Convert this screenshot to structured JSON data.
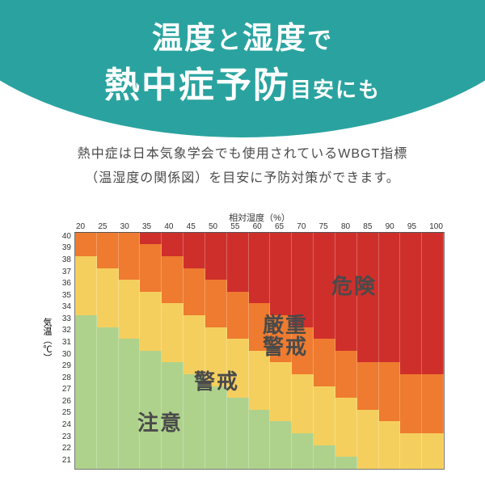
{
  "hero": {
    "circle_color": "#2aa3a0",
    "line1_pre": "温度",
    "line1_mid": "と",
    "line1_post": "湿度",
    "line1_end": "で",
    "line2_main": "熱中症予防",
    "line2_tail": "目安にも"
  },
  "subtitle": {
    "color": "#4a4a4a",
    "line1": "熱中症は日本気象学会でも使用されているWBGT指標",
    "line2": "（温湿度の関係図）を目安に予防対策ができます。"
  },
  "chart": {
    "type": "heatmap",
    "xaxis": {
      "label": "相対湿度（%）",
      "ticks": [
        20,
        25,
        30,
        35,
        40,
        45,
        50,
        55,
        60,
        65,
        70,
        75,
        80,
        85,
        90,
        95,
        100
      ]
    },
    "yaxis": {
      "label": "気温（℃）",
      "ticks": [
        40,
        39,
        38,
        37,
        36,
        35,
        34,
        33,
        32,
        31,
        30,
        29,
        28,
        27,
        26,
        25,
        24,
        23,
        22,
        21
      ]
    },
    "zone_colors": {
      "danger": "#cf2f2b",
      "severe": "#ee7b2f",
      "warning": "#f5cf5e",
      "caution": "#aed28c"
    },
    "grid": [
      [
        2,
        2,
        2,
        3,
        3,
        3,
        3,
        3,
        3,
        3,
        3,
        3,
        3,
        3,
        3,
        3,
        3
      ],
      [
        2,
        2,
        2,
        2,
        3,
        3,
        3,
        3,
        3,
        3,
        3,
        3,
        3,
        3,
        3,
        3,
        3
      ],
      [
        1,
        2,
        2,
        2,
        2,
        3,
        3,
        3,
        3,
        3,
        3,
        3,
        3,
        3,
        3,
        3,
        3
      ],
      [
        1,
        1,
        2,
        2,
        2,
        2,
        3,
        3,
        3,
        3,
        3,
        3,
        3,
        3,
        3,
        3,
        3
      ],
      [
        1,
        1,
        1,
        2,
        2,
        2,
        2,
        3,
        3,
        3,
        3,
        3,
        3,
        3,
        3,
        3,
        3
      ],
      [
        1,
        1,
        1,
        1,
        2,
        2,
        2,
        2,
        3,
        3,
        3,
        3,
        3,
        3,
        3,
        3,
        3
      ],
      [
        1,
        1,
        1,
        1,
        1,
        2,
        2,
        2,
        2,
        3,
        3,
        3,
        3,
        3,
        3,
        3,
        3
      ],
      [
        0,
        1,
        1,
        1,
        1,
        1,
        2,
        2,
        2,
        2,
        3,
        3,
        3,
        3,
        3,
        3,
        3
      ],
      [
        0,
        0,
        1,
        1,
        1,
        1,
        1,
        2,
        2,
        2,
        2,
        3,
        3,
        3,
        3,
        3,
        3
      ],
      [
        0,
        0,
        0,
        1,
        1,
        1,
        1,
        1,
        2,
        2,
        2,
        2,
        3,
        3,
        3,
        3,
        3
      ],
      [
        0,
        0,
        0,
        0,
        1,
        1,
        1,
        1,
        1,
        2,
        2,
        2,
        2,
        3,
        3,
        3,
        3
      ],
      [
        0,
        0,
        0,
        0,
        0,
        1,
        1,
        1,
        1,
        1,
        2,
        2,
        2,
        2,
        2,
        3,
        3
      ],
      [
        0,
        0,
        0,
        0,
        0,
        0,
        1,
        1,
        1,
        1,
        1,
        2,
        2,
        2,
        2,
        2,
        2
      ],
      [
        0,
        0,
        0,
        0,
        0,
        0,
        0,
        1,
        1,
        1,
        1,
        1,
        2,
        2,
        2,
        2,
        2
      ],
      [
        0,
        0,
        0,
        0,
        0,
        0,
        0,
        0,
        1,
        1,
        1,
        1,
        1,
        2,
        2,
        2,
        2
      ],
      [
        0,
        0,
        0,
        0,
        0,
        0,
        0,
        0,
        0,
        1,
        1,
        1,
        1,
        1,
        2,
        2,
        2
      ],
      [
        0,
        0,
        0,
        0,
        0,
        0,
        0,
        0,
        0,
        0,
        1,
        1,
        1,
        1,
        1,
        2,
        2
      ],
      [
        0,
        0,
        0,
        0,
        0,
        0,
        0,
        0,
        0,
        0,
        0,
        1,
        1,
        1,
        1,
        1,
        1
      ],
      [
        0,
        0,
        0,
        0,
        0,
        0,
        0,
        0,
        0,
        0,
        0,
        0,
        1,
        1,
        1,
        1,
        1
      ],
      [
        0,
        0,
        0,
        0,
        0,
        0,
        0,
        0,
        0,
        0,
        0,
        0,
        0,
        1,
        1,
        1,
        1
      ]
    ],
    "zone_labels": {
      "danger": {
        "text": "危険",
        "color": "#4a4a4a",
        "fontsize": 26,
        "left_pct": 72,
        "top_pct": 25
      },
      "severe": {
        "text_l1": "厳重",
        "text_l2": "警戒",
        "color": "#4a4a4a",
        "fontsize": 26,
        "left_pct": 55,
        "top_pct": 40
      },
      "warning": {
        "text": "警戒",
        "color": "#4a4a4a",
        "fontsize": 26,
        "left_pct": 38,
        "top_pct": 62
      },
      "caution": {
        "text": "注意",
        "color": "#4a4a4a",
        "fontsize": 26,
        "left_pct": 24,
        "top_pct": 78
      }
    }
  }
}
